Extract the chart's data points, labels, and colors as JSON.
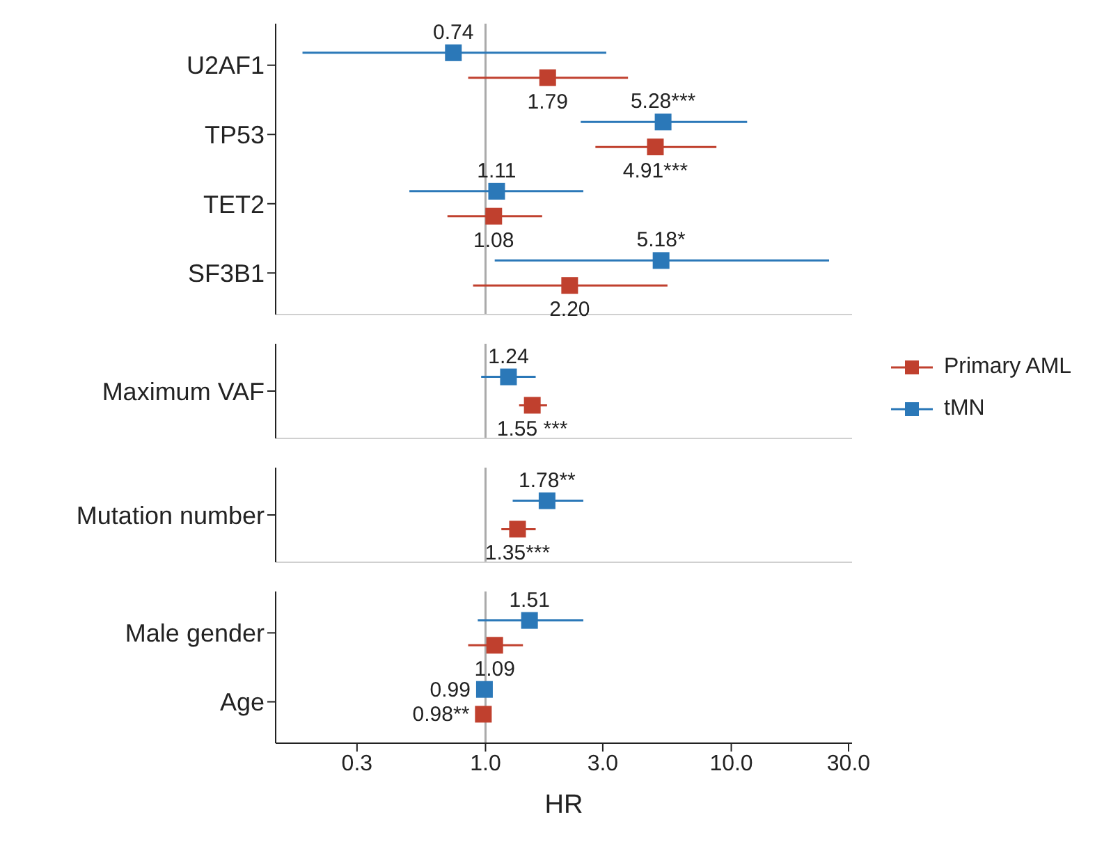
{
  "chart_data": [
    {
      "type": "scatter",
      "orientation": "horizontal",
      "log": "x",
      "tick_labels": "y",
      "marker": "square",
      "grid": false,
      "categories": [
        "U2AF1",
        "TP53",
        "TET2",
        "SF3B1"
      ],
      "series": [
        {
          "color": "#c0402e",
          "values": [
            1.79,
            4.91,
            1.08,
            2.2
          ],
          "errors": [
            [
              0.85,
              3.8
            ],
            [
              2.8,
              8.7
            ],
            [
              0.7,
              1.7
            ],
            [
              0.89,
              5.5
            ]
          ],
          "value_labels": [
            "1.79",
            "4.91***",
            "1.08",
            "2.20"
          ]
        },
        {
          "color": "#2b78b8",
          "values": [
            0.74,
            5.28,
            1.11,
            5.18
          ],
          "errors": [
            [
              0.18,
              3.1
            ],
            [
              2.44,
              11.6
            ],
            [
              0.49,
              2.5
            ],
            [
              1.09,
              25
            ]
          ],
          "value_labels": [
            "0.74",
            "5.28***",
            "1.11",
            "5.18*"
          ]
        }
      ],
      "xlim": [
        0.14,
        31
      ],
      "ref_lines": [
        {
          "axis": "x",
          "value": 1,
          "color": "#aaaaaa"
        }
      ]
    },
    {
      "type": "scatter",
      "orientation": "horizontal",
      "log": "x",
      "tick_labels": "y",
      "marker": "square",
      "grid": false,
      "legend": "right",
      "categories": [
        "Maximum VAF"
      ],
      "series": [
        {
          "name": "Primary AML",
          "color": "#c0402e",
          "values": [
            1.55
          ],
          "errors": [
            [
              1.37,
              1.78
            ]
          ],
          "value_labels": [
            "1.55 ***"
          ]
        },
        {
          "name": "tMN",
          "color": "#2b78b8",
          "values": [
            1.24
          ],
          "errors": [
            [
              0.96,
              1.6
            ]
          ],
          "value_labels": [
            "1.24"
          ]
        }
      ],
      "xlim": [
        0.14,
        31
      ],
      "ref_lines": [
        {
          "axis": "x",
          "value": 1,
          "color": "#aaaaaa"
        }
      ]
    },
    {
      "type": "scatter",
      "orientation": "horizontal",
      "log": "x",
      "tick_labels": "y",
      "marker": "square",
      "grid": false,
      "categories": [
        "Mutation number"
      ],
      "series": [
        {
          "color": "#c0402e",
          "values": [
            1.35
          ],
          "errors": [
            [
              1.16,
              1.6
            ]
          ],
          "value_labels": [
            "1.35***"
          ]
        },
        {
          "color": "#2b78b8",
          "values": [
            1.78
          ],
          "errors": [
            [
              1.29,
              2.5
            ]
          ],
          "value_labels": [
            "1.78**"
          ]
        }
      ],
      "xlim": [
        0.14,
        31
      ],
      "ref_lines": [
        {
          "axis": "x",
          "value": 1,
          "color": "#aaaaaa"
        }
      ]
    },
    {
      "type": "scatter",
      "orientation": "horizontal",
      "log": "x",
      "marker": "square",
      "grid": false,
      "xlabel": "HR",
      "categories": [
        "Male gender",
        "Age"
      ],
      "series": [
        {
          "color": "#c0402e",
          "values": [
            1.09,
            0.98
          ],
          "errors": [
            [
              0.85,
              1.42
            ],
            null
          ],
          "value_labels": [
            "1.09",
            "0.98**"
          ]
        },
        {
          "color": "#2b78b8",
          "values": [
            1.51,
            0.99
          ],
          "errors": [
            [
              0.93,
              2.5
            ],
            null
          ],
          "value_labels": [
            "1.51",
            "0.99"
          ]
        }
      ],
      "xlim": [
        0.14,
        31
      ],
      "xticks": [
        {
          "value": 0.3,
          "label": "0.3"
        },
        {
          "value": 1,
          "label": "1.0"
        },
        {
          "value": 3,
          "label": "3.0"
        },
        {
          "value": 10,
          "label": "10.0"
        },
        {
          "value": 30,
          "label": "30.0"
        }
      ],
      "ref_lines": [
        {
          "axis": "x",
          "value": 1,
          "color": "#aaaaaa"
        }
      ]
    }
  ]
}
